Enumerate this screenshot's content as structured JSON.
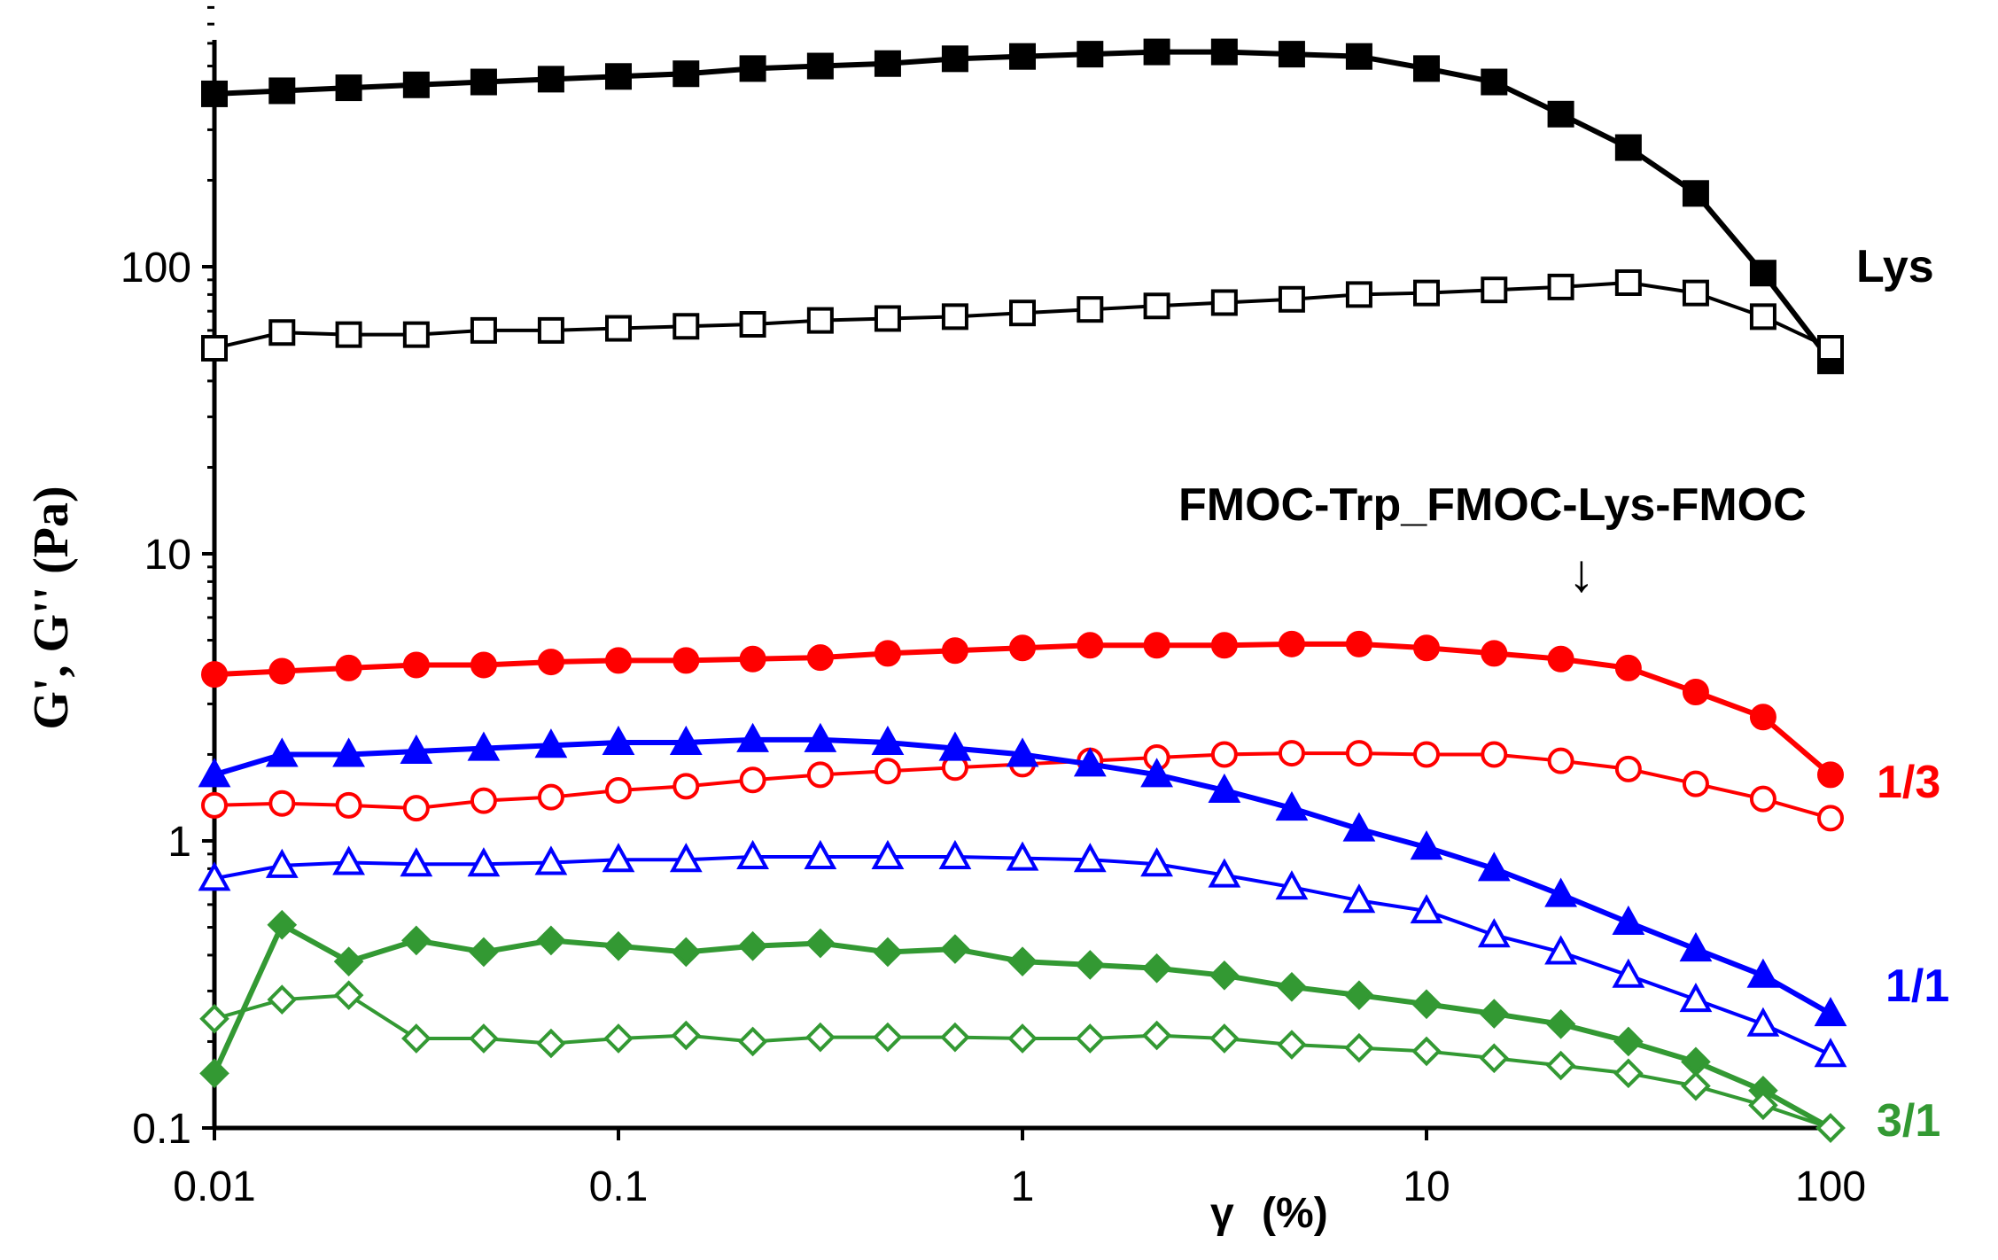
{
  "chart_data": {
    "type": "line",
    "xscale": "log",
    "yscale": "log",
    "xlim": [
      0.01,
      100
    ],
    "ylim": [
      0.1,
      800
    ],
    "xlabel_symbol": "γ",
    "xlabel_unit": "(%)",
    "ylabel": "G', G'' (Pa)",
    "xticks": [
      {
        "value": 0.01,
        "label": "0.01"
      },
      {
        "value": 0.1,
        "label": "0.1"
      },
      {
        "value": 1,
        "label": "1"
      },
      {
        "value": 10,
        "label": "10"
      },
      {
        "value": 100,
        "label": "100"
      }
    ],
    "yticks": [
      {
        "value": 0.1,
        "label": "0.1"
      },
      {
        "value": 1,
        "label": "1"
      },
      {
        "value": 10,
        "label": "10"
      },
      {
        "value": 100,
        "label": "100"
      }
    ],
    "x": [
      0.01,
      0.0147,
      0.0215,
      0.0316,
      0.0464,
      0.0681,
      0.1,
      0.147,
      0.215,
      0.316,
      0.464,
      0.681,
      1,
      1.47,
      2.15,
      3.16,
      4.64,
      6.81,
      10,
      14.7,
      21.5,
      31.6,
      46.4,
      68.1,
      100
    ],
    "series": [
      {
        "name": "Lys G'",
        "color": "#000000",
        "marker": "square",
        "filled": true,
        "values": [
          400,
          410,
          420,
          430,
          440,
          450,
          460,
          470,
          490,
          500,
          510,
          530,
          540,
          550,
          560,
          560,
          550,
          540,
          490,
          440,
          340,
          260,
          180,
          95,
          47
        ]
      },
      {
        "name": "Lys G''",
        "color": "#000000",
        "marker": "square",
        "filled": false,
        "values": [
          52,
          59,
          58,
          58,
          60,
          60,
          61,
          62,
          63,
          65,
          66,
          67,
          69,
          71,
          73,
          75,
          77,
          80,
          81,
          83,
          85,
          88,
          81,
          67,
          52
        ]
      },
      {
        "name": "1/3 G'",
        "color": "#ff0000",
        "marker": "circle",
        "filled": true,
        "values": [
          3.8,
          3.9,
          4.0,
          4.1,
          4.1,
          4.2,
          4.25,
          4.25,
          4.3,
          4.35,
          4.5,
          4.6,
          4.7,
          4.8,
          4.8,
          4.8,
          4.85,
          4.85,
          4.7,
          4.5,
          4.3,
          4.0,
          3.3,
          2.7,
          1.7
        ]
      },
      {
        "name": "1/3 G''",
        "color": "#ff0000",
        "marker": "circle",
        "filled": false,
        "values": [
          1.33,
          1.35,
          1.33,
          1.3,
          1.38,
          1.42,
          1.5,
          1.55,
          1.63,
          1.7,
          1.75,
          1.8,
          1.85,
          1.9,
          1.95,
          2.0,
          2.02,
          2.02,
          2.0,
          2.0,
          1.9,
          1.78,
          1.58,
          1.4,
          1.2
        ]
      },
      {
        "name": "1/1 G'",
        "color": "#0000ff",
        "marker": "triangle",
        "filled": true,
        "values": [
          1.7,
          2.0,
          2.0,
          2.05,
          2.1,
          2.15,
          2.2,
          2.2,
          2.25,
          2.25,
          2.2,
          2.1,
          2.0,
          1.85,
          1.7,
          1.5,
          1.3,
          1.1,
          0.95,
          0.8,
          0.65,
          0.52,
          0.42,
          0.34,
          0.25
        ]
      },
      {
        "name": "1/1 G''",
        "color": "#0000ff",
        "marker": "triangle",
        "filled": false,
        "values": [
          0.74,
          0.82,
          0.84,
          0.83,
          0.83,
          0.84,
          0.86,
          0.86,
          0.88,
          0.88,
          0.88,
          0.88,
          0.87,
          0.86,
          0.83,
          0.76,
          0.69,
          0.62,
          0.57,
          0.47,
          0.41,
          0.34,
          0.28,
          0.23,
          0.18
        ]
      },
      {
        "name": "3/1 G'",
        "color": "#339933",
        "marker": "diamond",
        "filled": true,
        "values": [
          0.155,
          0.51,
          0.38,
          0.45,
          0.41,
          0.45,
          0.43,
          0.41,
          0.43,
          0.44,
          0.41,
          0.42,
          0.38,
          0.37,
          0.36,
          0.34,
          0.31,
          0.29,
          0.27,
          0.25,
          0.23,
          0.2,
          0.17,
          0.135,
          0.1
        ]
      },
      {
        "name": "3/1 G''",
        "color": "#339933",
        "marker": "diamond",
        "filled": false,
        "values": [
          0.24,
          0.28,
          0.29,
          0.205,
          0.205,
          0.197,
          0.205,
          0.21,
          0.2,
          0.207,
          0.207,
          0.207,
          0.205,
          0.205,
          0.21,
          0.205,
          0.195,
          0.19,
          0.185,
          0.175,
          0.165,
          0.155,
          0.14,
          0.12,
          0.1
        ]
      }
    ],
    "annotations": [
      {
        "text": "Lys",
        "color": "#000000"
      },
      {
        "text": "FMOC-Trp_FMOC-Lys-FMOC",
        "color": "#000000"
      },
      {
        "text": "↓",
        "color": "#000000"
      },
      {
        "text": "1/3",
        "color": "#ff0000"
      },
      {
        "text": "1/1",
        "color": "#0000ff"
      },
      {
        "text": "3/1",
        "color": "#339933"
      }
    ]
  }
}
